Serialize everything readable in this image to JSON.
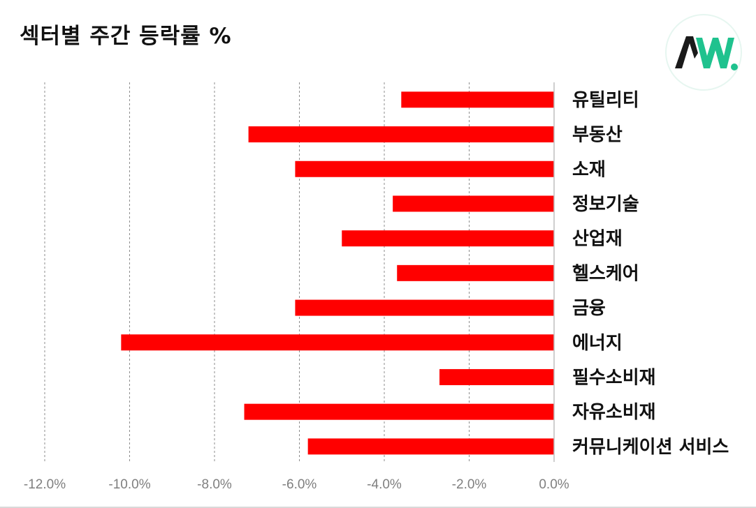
{
  "title": "섹터별 주간 등락률 %",
  "logo": {
    "text": "AW.",
    "accent_color": "#1fc28e",
    "dark_color": "#1a1a1a"
  },
  "chart_data": {
    "type": "bar",
    "orientation": "horizontal",
    "categories": [
      "유틸리티",
      "부동산",
      "소재",
      "정보기술",
      "산업재",
      "헬스케어",
      "금융",
      "에너지",
      "필수소비재",
      "자유소비재",
      "커뮤니케이션 서비스"
    ],
    "values": [
      -3.6,
      -7.2,
      -6.1,
      -3.8,
      -5.0,
      -3.7,
      -6.1,
      -10.2,
      -2.7,
      -7.3,
      -5.8
    ],
    "xlim": [
      -12.0,
      0.0
    ],
    "xticks": [
      -12.0,
      -10.0,
      -8.0,
      -6.0,
      -4.0,
      -2.0,
      0.0
    ],
    "xtick_labels": [
      "-12.0%",
      "-10.0%",
      "-8.0%",
      "-6.0%",
      "-4.0%",
      "-2.0%",
      "0.0%"
    ],
    "bar_color": "#ff0000",
    "grid": "vertical dashed",
    "legend": "none"
  }
}
